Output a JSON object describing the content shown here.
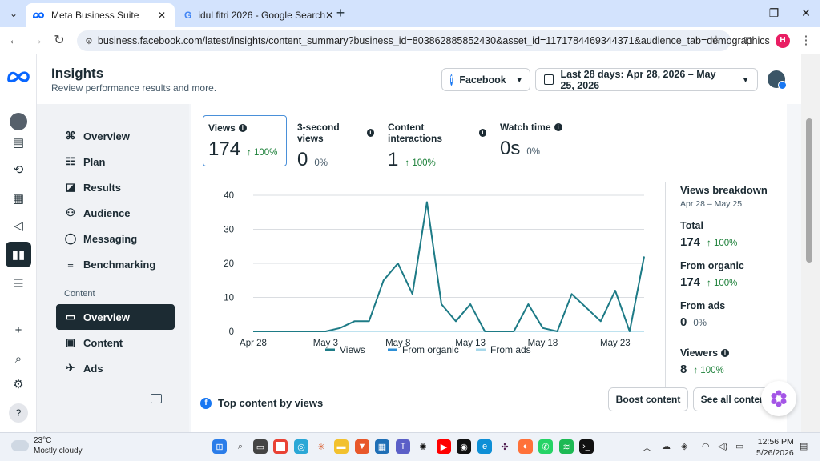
{
  "browser": {
    "tabs": [
      {
        "label": "Meta Business Suite",
        "active": true,
        "favicon": "meta-icon"
      },
      {
        "label": "idul fitri 2026 - Google Search",
        "active": false,
        "favicon": "google-icon"
      }
    ],
    "url": "business.facebook.com/latest/insights/content_summary?business_id=803862885852430&asset_id=1171784469344371&audience_tab=demographics",
    "profile_initial": "H"
  },
  "header": {
    "title": "Insights",
    "subtitle": "Review performance results and more.",
    "platform": "Facebook",
    "date_range": "Last 28 days: Apr 28, 2026 – May 25, 2026"
  },
  "sidenav": {
    "items": [
      {
        "label": "Overview",
        "icon": "overview-icon"
      },
      {
        "label": "Plan",
        "icon": "plan-icon"
      },
      {
        "label": "Results",
        "icon": "results-icon"
      },
      {
        "label": "Audience",
        "icon": "audience-icon"
      },
      {
        "label": "Messaging",
        "icon": "messaging-icon"
      },
      {
        "label": "Benchmarking",
        "icon": "benchmarking-icon"
      }
    ],
    "section_label": "Content",
    "content_items": [
      {
        "label": "Overview",
        "icon": "content-overview-icon",
        "active": true
      },
      {
        "label": "Content",
        "icon": "content-icon"
      },
      {
        "label": "Ads",
        "icon": "ads-icon"
      }
    ]
  },
  "metrics": [
    {
      "label": "Views",
      "value": "174",
      "change": "100%",
      "direction": "up"
    },
    {
      "label": "3-second views",
      "value": "0",
      "change": "0%",
      "direction": "none"
    },
    {
      "label": "Content interactions",
      "value": "1",
      "change": "100%",
      "direction": "up"
    },
    {
      "label": "Watch time",
      "value": "0s",
      "change": "0%",
      "direction": "none"
    }
  ],
  "chart_data": {
    "type": "line",
    "x_ticks": [
      "Apr 28",
      "May 3",
      "May 8",
      "May 13",
      "May 18",
      "May 23"
    ],
    "x": [
      "Apr 28",
      "Apr 29",
      "Apr 30",
      "May 1",
      "May 2",
      "May 3",
      "May 4",
      "May 5",
      "May 6",
      "May 7",
      "May 8",
      "May 9",
      "May 10",
      "May 11",
      "May 12",
      "May 13",
      "May 14",
      "May 15",
      "May 16",
      "May 17",
      "May 18",
      "May 19",
      "May 20",
      "May 21",
      "May 22",
      "May 23",
      "May 24",
      "May 25"
    ],
    "series": [
      {
        "name": "Views",
        "color": "#1e7b86",
        "values": [
          0,
          0,
          0,
          0,
          0,
          0,
          1,
          3,
          3,
          15,
          20,
          11,
          38,
          8,
          3,
          8,
          0,
          0,
          0,
          8,
          1,
          0,
          11,
          7,
          3,
          12,
          0,
          22
        ]
      },
      {
        "name": "From organic",
        "color": "#2d8fd6",
        "values": [
          0,
          0,
          0,
          0,
          0,
          0,
          1,
          3,
          3,
          15,
          20,
          11,
          38,
          8,
          3,
          8,
          0,
          0,
          0,
          8,
          1,
          0,
          11,
          7,
          3,
          12,
          0,
          22
        ]
      },
      {
        "name": "From ads",
        "color": "#a8d8ea",
        "values": [
          0,
          0,
          0,
          0,
          0,
          0,
          0,
          0,
          0,
          0,
          0,
          0,
          0,
          0,
          0,
          0,
          0,
          0,
          0,
          0,
          0,
          0,
          0,
          0,
          0,
          0,
          0,
          0
        ]
      }
    ],
    "y_ticks": [
      0,
      10,
      20,
      30,
      40
    ],
    "ylim": [
      0,
      40
    ],
    "grid": true,
    "legend_position": "bottom"
  },
  "breakdown": {
    "title": "Views breakdown",
    "range": "Apr 28 – May 25",
    "items": [
      {
        "label": "Total",
        "value": "174",
        "change": "100%",
        "direction": "up"
      },
      {
        "label": "From organic",
        "value": "174",
        "change": "100%",
        "direction": "up"
      },
      {
        "label": "From ads",
        "value": "0",
        "change": "0%",
        "direction": "none"
      },
      {
        "label": "Viewers",
        "value": "8",
        "change": "100%",
        "direction": "up"
      }
    ]
  },
  "top_content": {
    "title": "Top content by views",
    "boost_label": "Boost content",
    "see_all_label": "See all content"
  },
  "taskbar": {
    "temperature": "23°C",
    "weather": "Mostly cloudy",
    "time": "12:56 PM",
    "date": "5/26/2026"
  }
}
